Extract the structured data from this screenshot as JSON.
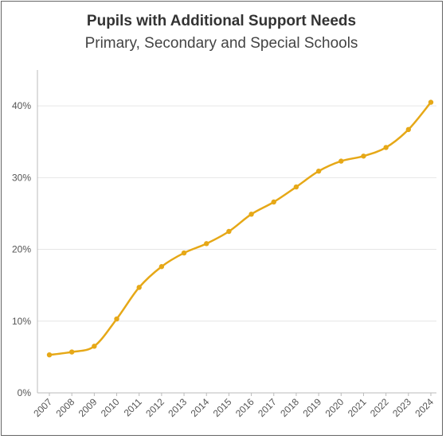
{
  "chart_data": {
    "type": "line",
    "title": "Pupils with Additional Support Needs",
    "subtitle": "Primary, Secondary and Special Schools",
    "xlabel": "",
    "ylabel": "",
    "x": [
      "2007",
      "2008",
      "2009",
      "2010",
      "2011",
      "2012",
      "2013",
      "2014",
      "2015",
      "2016",
      "2017",
      "2018",
      "2019",
      "2020",
      "2021",
      "2022",
      "2023",
      "2024"
    ],
    "series": [
      {
        "values": [
          5.3,
          5.7,
          6.5,
          10.3,
          14.7,
          17.6,
          19.5,
          20.8,
          22.5,
          24.9,
          26.6,
          28.7,
          30.9,
          32.3,
          33.0,
          34.2,
          36.7,
          40.5
        ]
      }
    ],
    "ylim": [
      0,
      45
    ],
    "yticks": [
      0,
      10,
      20,
      30,
      40
    ],
    "ytick_labels": [
      "0%",
      "10%",
      "20%",
      "30%",
      "40%"
    ],
    "grid": true,
    "legend": "none",
    "colors": {
      "line": "#e6a817",
      "grid": "#e6e6e6",
      "axis": "#bbbbbb",
      "frame": "#666666"
    }
  }
}
